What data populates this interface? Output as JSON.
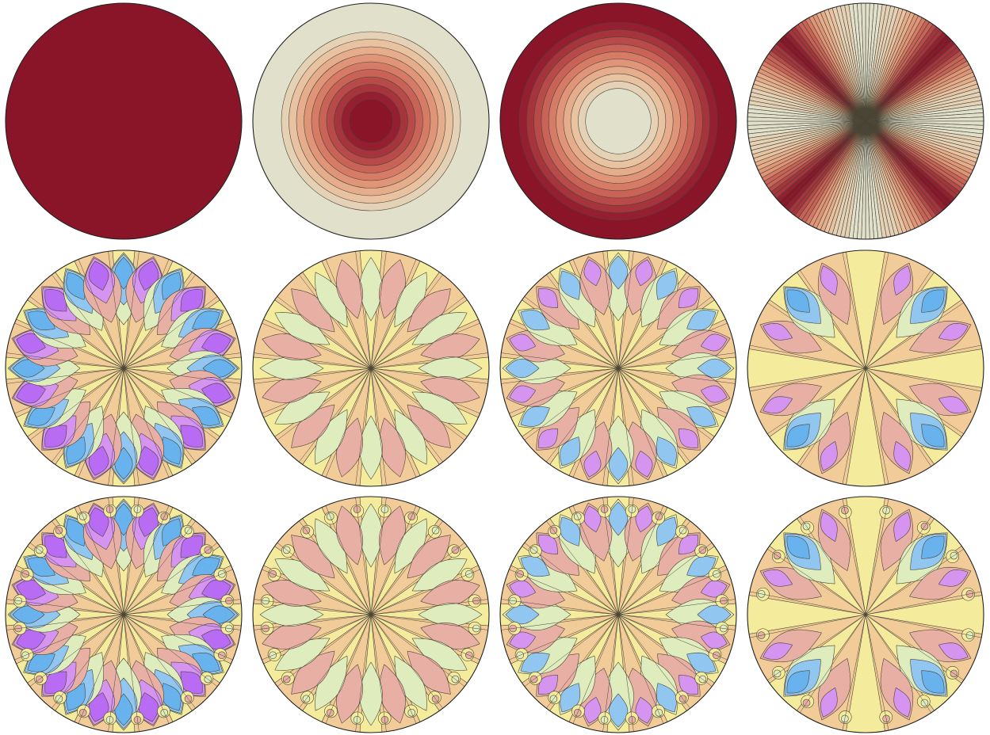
{
  "palettes": {
    "red": [
      "#e0e0cb",
      "#e5d2b6",
      "#e8c2a1",
      "#e6ad8c",
      "#e09578",
      "#d67c66",
      "#c96257",
      "#b84a49",
      "#a5343c",
      "#951f31",
      "#8a1529"
    ],
    "div": [
      "#b86cf3",
      "#d594f0",
      "#68b2ed",
      "#91c6f1",
      "#dfecbd",
      "#f4ec9c",
      "#f1cc98",
      "#e8afa5"
    ]
  },
  "line_color": "#4a4536",
  "panels": [
    {
      "kind": "solid",
      "color": "#8a1529"
    },
    {
      "kind": "rings-center-dark",
      "rings": 10
    },
    {
      "kind": "rings-edge-dark",
      "rings": 10
    },
    {
      "kind": "fan",
      "lobes": 4
    },
    {
      "kind": "petal",
      "m": 6,
      "variant": "blue-purple"
    },
    {
      "kind": "petal",
      "m": 6,
      "variant": "mild"
    },
    {
      "kind": "petal",
      "m": 6,
      "variant": "mixed"
    },
    {
      "kind": "petal",
      "m": 4,
      "variant": "mixed-diag"
    },
    {
      "kind": "petal-fine",
      "m": 6,
      "variant": "blue-purple"
    },
    {
      "kind": "petal-fine",
      "m": 6,
      "variant": "mild"
    },
    {
      "kind": "petal-fine",
      "m": 6,
      "variant": "mixed"
    },
    {
      "kind": "petal-fine",
      "m": 4,
      "variant": "mixed-diag"
    }
  ]
}
